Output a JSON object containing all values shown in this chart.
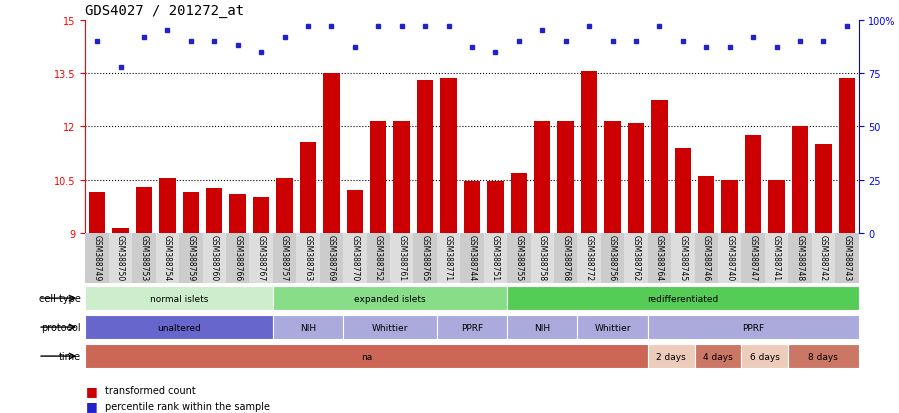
{
  "title": "GDS4027 / 201272_at",
  "samples": [
    "GSM388749",
    "GSM388750",
    "GSM388753",
    "GSM388754",
    "GSM388759",
    "GSM388760",
    "GSM388766",
    "GSM388767",
    "GSM388757",
    "GSM388763",
    "GSM388769",
    "GSM388770",
    "GSM388752",
    "GSM388761",
    "GSM388765",
    "GSM388771",
    "GSM388744",
    "GSM388751",
    "GSM388755",
    "GSM388758",
    "GSM388768",
    "GSM388772",
    "GSM388756",
    "GSM388762",
    "GSM388764",
    "GSM388745",
    "GSM388746",
    "GSM388740",
    "GSM388747",
    "GSM388741",
    "GSM388748",
    "GSM388742",
    "GSM388743"
  ],
  "bar_values": [
    10.15,
    9.15,
    10.3,
    10.55,
    10.15,
    10.25,
    10.1,
    10.0,
    10.55,
    11.55,
    13.5,
    10.2,
    12.15,
    12.15,
    13.3,
    13.35,
    10.45,
    10.45,
    10.7,
    12.15,
    12.15,
    13.55,
    12.15,
    12.1,
    12.75,
    11.4,
    10.6,
    10.5,
    11.75,
    10.5,
    12.0,
    11.5,
    13.35
  ],
  "percentile_values": [
    90,
    78,
    92,
    95,
    90,
    90,
    88,
    85,
    92,
    97,
    97,
    87,
    97,
    97,
    97,
    97,
    87,
    85,
    90,
    95,
    90,
    97,
    90,
    90,
    97,
    90,
    87,
    87,
    92,
    87,
    90,
    90,
    97
  ],
  "bar_color": "#cc0000",
  "dot_color": "#2222cc",
  "ylim_left": [
    9,
    15
  ],
  "yticks_left": [
    9,
    10.5,
    12,
    13.5,
    15
  ],
  "ylim_right": [
    0,
    100
  ],
  "yticks_right": [
    0,
    25,
    50,
    75,
    100
  ],
  "dotted_lines": [
    10.5,
    12.0,
    13.5
  ],
  "cell_type_groups": [
    {
      "label": "normal islets",
      "start": 0,
      "end": 7,
      "color": "#cceecc"
    },
    {
      "label": "expanded islets",
      "start": 8,
      "end": 17,
      "color": "#88dd88"
    },
    {
      "label": "redifferentiated",
      "start": 18,
      "end": 32,
      "color": "#55cc55"
    }
  ],
  "protocol_groups": [
    {
      "label": "unaltered",
      "start": 0,
      "end": 7,
      "color": "#6666cc"
    },
    {
      "label": "NIH",
      "start": 8,
      "end": 10,
      "color": "#aaaadd"
    },
    {
      "label": "Whittier",
      "start": 11,
      "end": 14,
      "color": "#aaaadd"
    },
    {
      "label": "PPRF",
      "start": 15,
      "end": 17,
      "color": "#aaaadd"
    },
    {
      "label": "NIH",
      "start": 18,
      "end": 20,
      "color": "#aaaadd"
    },
    {
      "label": "Whittier",
      "start": 21,
      "end": 23,
      "color": "#aaaadd"
    },
    {
      "label": "PPRF",
      "start": 24,
      "end": 32,
      "color": "#aaaadd"
    }
  ],
  "time_groups": [
    {
      "label": "na",
      "start": 0,
      "end": 23,
      "color": "#cc6655"
    },
    {
      "label": "2 days",
      "start": 24,
      "end": 25,
      "color": "#eeccbb"
    },
    {
      "label": "4 days",
      "start": 26,
      "end": 27,
      "color": "#cc7766"
    },
    {
      "label": "6 days",
      "start": 28,
      "end": 29,
      "color": "#eeccbb"
    },
    {
      "label": "8 days",
      "start": 30,
      "end": 32,
      "color": "#cc7766"
    }
  ],
  "label_fontsize": 7,
  "tick_fontsize": 7,
  "title_fontsize": 10,
  "row_labels": [
    "cell type",
    "protocol",
    "time"
  ],
  "legend_items": [
    {
      "color": "#cc0000",
      "label": "transformed count"
    },
    {
      "color": "#2222cc",
      "label": "percentile rank within the sample"
    }
  ]
}
